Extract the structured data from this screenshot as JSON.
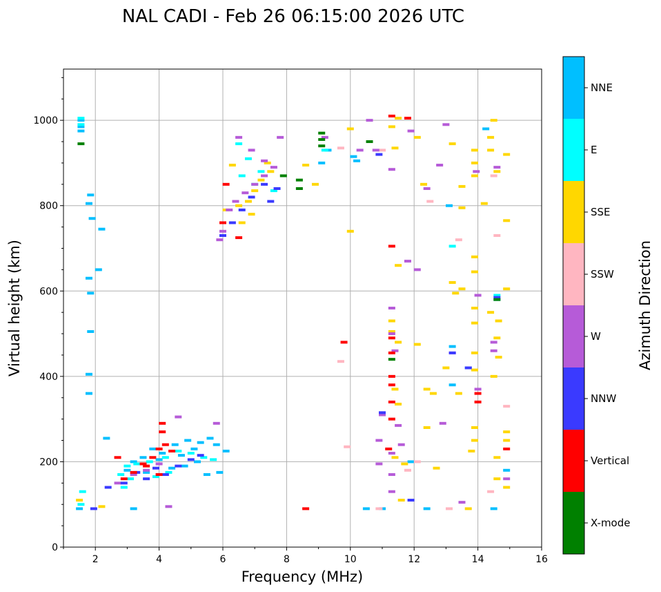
{
  "chart_data": {
    "type": "scatter",
    "title": "NAL CADI - Feb 26 06:15:00 2026 UTC",
    "xlabel": "Frequency (MHz)",
    "ylabel": "Virtual height (km)",
    "xlim": [
      1,
      16
    ],
    "ylim": [
      0,
      1120
    ],
    "xticks": [
      2,
      4,
      6,
      8,
      10,
      12,
      14,
      16
    ],
    "yticks": [
      0,
      200,
      400,
      600,
      800,
      1000
    ],
    "grid": true,
    "colorbar": {
      "title": "Azimuth Direction",
      "categories": [
        "X-mode",
        "Vertical",
        "NNW",
        "W",
        "SSW",
        "SSE",
        "E",
        "NNE"
      ],
      "colors": [
        "#008000",
        "#ff0000",
        "#3a3aff",
        "#b65bd8",
        "#ffb6c1",
        "#ffd700",
        "#00ffff",
        "#00bfff"
      ]
    },
    "series": [
      {
        "name": "NNE",
        "points": [
          [
            1.55,
            1000
          ],
          [
            1.55,
            985
          ],
          [
            1.55,
            975
          ],
          [
            1.85,
            825
          ],
          [
            1.8,
            805
          ],
          [
            1.9,
            770
          ],
          [
            1.8,
            630
          ],
          [
            1.85,
            595
          ],
          [
            1.85,
            505
          ],
          [
            1.8,
            405
          ],
          [
            1.8,
            360
          ],
          [
            2.2,
            745
          ],
          [
            2.1,
            650
          ],
          [
            2.35,
            255
          ],
          [
            3.2,
            90
          ],
          [
            3.0,
            180
          ],
          [
            3.2,
            200
          ],
          [
            3.5,
            210
          ],
          [
            3.8,
            230
          ],
          [
            4.1,
            220
          ],
          [
            4.5,
            240
          ],
          [
            4.9,
            250
          ],
          [
            5.3,
            245
          ],
          [
            5.6,
            255
          ],
          [
            5.8,
            240
          ],
          [
            6.1,
            225
          ],
          [
            5.5,
            170
          ],
          [
            5.9,
            175
          ],
          [
            4.8,
            190
          ],
          [
            5.2,
            200
          ],
          [
            4.4,
            185
          ],
          [
            3.6,
            175
          ],
          [
            3.4,
            195
          ],
          [
            4.0,
            205
          ],
          [
            4.7,
            215
          ],
          [
            5.1,
            230
          ],
          [
            9.3,
            930
          ],
          [
            9.1,
            900
          ],
          [
            10.1,
            915
          ],
          [
            10.2,
            905
          ],
          [
            11.9,
            200
          ],
          [
            12.4,
            90
          ],
          [
            13.2,
            470
          ],
          [
            13.2,
            380
          ],
          [
            13.7,
            420
          ],
          [
            14.25,
            980
          ],
          [
            14.6,
            580
          ],
          [
            14.9,
            180
          ],
          [
            14.5,
            90
          ],
          [
            10.5,
            90
          ],
          [
            11.0,
            90
          ],
          [
            1.5,
            90
          ],
          [
            13.1,
            800
          ]
        ]
      },
      {
        "name": "E",
        "points": [
          [
            1.55,
            1005
          ],
          [
            1.55,
            990
          ],
          [
            1.6,
            130
          ],
          [
            1.55,
            100
          ],
          [
            2.8,
            170
          ],
          [
            3.0,
            190
          ],
          [
            3.3,
            195
          ],
          [
            3.7,
            200
          ],
          [
            4.2,
            210
          ],
          [
            4.6,
            225
          ],
          [
            5.0,
            220
          ],
          [
            5.4,
            210
          ],
          [
            5.7,
            205
          ],
          [
            4.3,
            175
          ],
          [
            3.9,
            165
          ],
          [
            3.1,
            160
          ],
          [
            2.9,
            140
          ],
          [
            6.5,
            945
          ],
          [
            6.8,
            910
          ],
          [
            7.2,
            880
          ],
          [
            7.0,
            850
          ],
          [
            7.6,
            835
          ],
          [
            6.6,
            870
          ],
          [
            9.2,
            930
          ],
          [
            13.2,
            705
          ],
          [
            14.6,
            590
          ]
        ]
      },
      {
        "name": "SSE",
        "points": [
          [
            2.2,
            95
          ],
          [
            1.5,
            110
          ],
          [
            6.1,
            790
          ],
          [
            6.5,
            800
          ],
          [
            6.8,
            810
          ],
          [
            7.0,
            835
          ],
          [
            7.2,
            860
          ],
          [
            7.5,
            880
          ],
          [
            6.9,
            780
          ],
          [
            6.6,
            760
          ],
          [
            7.4,
            900
          ],
          [
            6.3,
            895
          ],
          [
            8.6,
            895
          ],
          [
            8.9,
            850
          ],
          [
            10.0,
            980
          ],
          [
            10.0,
            740
          ],
          [
            11.3,
            985
          ],
          [
            11.4,
            935
          ],
          [
            11.5,
            1005
          ],
          [
            11.5,
            660
          ],
          [
            11.3,
            530
          ],
          [
            11.3,
            505
          ],
          [
            11.4,
            370
          ],
          [
            11.5,
            335
          ],
          [
            11.4,
            210
          ],
          [
            11.6,
            110
          ],
          [
            11.7,
            195
          ],
          [
            12.1,
            475
          ],
          [
            12.1,
            960
          ],
          [
            12.3,
            850
          ],
          [
            12.4,
            370
          ],
          [
            12.6,
            360
          ],
          [
            12.4,
            280
          ],
          [
            12.7,
            185
          ],
          [
            13.2,
            945
          ],
          [
            13.2,
            620
          ],
          [
            13.3,
            595
          ],
          [
            13.5,
            845
          ],
          [
            13.5,
            795
          ],
          [
            13.5,
            605
          ],
          [
            13.4,
            360
          ],
          [
            13.0,
            420
          ],
          [
            13.7,
            90
          ],
          [
            13.8,
            225
          ],
          [
            13.9,
            930
          ],
          [
            13.9,
            900
          ],
          [
            13.9,
            870
          ],
          [
            13.9,
            680
          ],
          [
            13.9,
            645
          ],
          [
            13.9,
            560
          ],
          [
            13.9,
            525
          ],
          [
            13.9,
            455
          ],
          [
            13.9,
            415
          ],
          [
            13.9,
            280
          ],
          [
            13.9,
            250
          ],
          [
            14.2,
            805
          ],
          [
            14.4,
            960
          ],
          [
            14.4,
            930
          ],
          [
            14.5,
            1000
          ],
          [
            14.4,
            550
          ],
          [
            14.6,
            880
          ],
          [
            14.65,
            530
          ],
          [
            14.6,
            490
          ],
          [
            14.65,
            445
          ],
          [
            14.5,
            400
          ],
          [
            14.6,
            210
          ],
          [
            14.6,
            160
          ],
          [
            14.9,
            920
          ],
          [
            14.9,
            765
          ],
          [
            14.9,
            605
          ],
          [
            14.9,
            270
          ],
          [
            14.9,
            250
          ],
          [
            14.9,
            140
          ],
          [
            11.5,
            480
          ]
        ]
      },
      {
        "name": "SSW",
        "points": [
          [
            9.7,
            935
          ],
          [
            9.7,
            435
          ],
          [
            9.9,
            235
          ],
          [
            10.9,
            90
          ],
          [
            11.0,
            930
          ],
          [
            12.1,
            200
          ],
          [
            12.5,
            810
          ],
          [
            13.1,
            90
          ],
          [
            13.4,
            720
          ],
          [
            14.5,
            870
          ],
          [
            14.6,
            730
          ],
          [
            14.9,
            330
          ],
          [
            14.4,
            130
          ],
          [
            11.8,
            180
          ]
        ]
      },
      {
        "name": "W",
        "points": [
          [
            6.2,
            790
          ],
          [
            6.4,
            810
          ],
          [
            6.7,
            830
          ],
          [
            7.0,
            850
          ],
          [
            7.3,
            870
          ],
          [
            7.6,
            890
          ],
          [
            6.0,
            740
          ],
          [
            5.9,
            720
          ],
          [
            6.5,
            960
          ],
          [
            6.9,
            930
          ],
          [
            7.3,
            905
          ],
          [
            7.8,
            960
          ],
          [
            4.6,
            305
          ],
          [
            5.8,
            290
          ],
          [
            2.7,
            150
          ],
          [
            3.2,
            170
          ],
          [
            3.6,
            180
          ],
          [
            4.0,
            195
          ],
          [
            4.3,
            95
          ],
          [
            10.6,
            1000
          ],
          [
            10.8,
            930
          ],
          [
            11.3,
            885
          ],
          [
            11.8,
            670
          ],
          [
            11.9,
            975
          ],
          [
            12.1,
            650
          ],
          [
            12.8,
            895
          ],
          [
            12.4,
            840
          ],
          [
            13.0,
            990
          ],
          [
            11.3,
            560
          ],
          [
            11.3,
            500
          ],
          [
            11.4,
            460
          ],
          [
            11.5,
            285
          ],
          [
            11.6,
            240
          ],
          [
            11.3,
            220
          ],
          [
            11.3,
            170
          ],
          [
            11.0,
            310
          ],
          [
            10.9,
            250
          ],
          [
            10.9,
            195
          ],
          [
            12.9,
            290
          ],
          [
            13.2,
            455
          ],
          [
            14.0,
            590
          ],
          [
            14.0,
            370
          ],
          [
            14.5,
            480
          ],
          [
            14.5,
            460
          ],
          [
            14.6,
            890
          ],
          [
            14.9,
            160
          ],
          [
            13.5,
            105
          ],
          [
            11.3,
            130
          ],
          [
            9.2,
            960
          ],
          [
            10.3,
            930
          ],
          [
            13.95,
            880
          ]
        ]
      },
      {
        "name": "NNW",
        "points": [
          [
            6.0,
            730
          ],
          [
            6.3,
            760
          ],
          [
            6.6,
            790
          ],
          [
            6.9,
            820
          ],
          [
            7.3,
            850
          ],
          [
            7.7,
            840
          ],
          [
            7.5,
            810
          ],
          [
            2.4,
            140
          ],
          [
            2.9,
            150
          ],
          [
            3.3,
            175
          ],
          [
            3.6,
            160
          ],
          [
            3.9,
            185
          ],
          [
            4.2,
            170
          ],
          [
            4.6,
            190
          ],
          [
            5.0,
            205
          ],
          [
            5.3,
            215
          ],
          [
            1.95,
            90
          ],
          [
            11.9,
            110
          ],
          [
            11.0,
            315
          ],
          [
            13.2,
            455
          ],
          [
            13.7,
            420
          ],
          [
            10.9,
            920
          ],
          [
            14.6,
            585
          ]
        ]
      },
      {
        "name": "Vertical",
        "points": [
          [
            6.1,
            850
          ],
          [
            6.0,
            760
          ],
          [
            6.5,
            725
          ],
          [
            4.1,
            290
          ],
          [
            4.1,
            270
          ],
          [
            4.2,
            240
          ],
          [
            4.0,
            230
          ],
          [
            3.8,
            210
          ],
          [
            4.4,
            225
          ],
          [
            3.6,
            190
          ],
          [
            3.2,
            175
          ],
          [
            4.0,
            170
          ],
          [
            2.7,
            210
          ],
          [
            2.9,
            160
          ],
          [
            3.5,
            195
          ],
          [
            8.6,
            90
          ],
          [
            9.8,
            480
          ],
          [
            11.3,
            1010
          ],
          [
            11.3,
            705
          ],
          [
            11.3,
            490
          ],
          [
            11.3,
            455
          ],
          [
            11.3,
            400
          ],
          [
            11.3,
            380
          ],
          [
            11.3,
            340
          ],
          [
            11.3,
            300
          ],
          [
            11.8,
            1005
          ],
          [
            14.0,
            340
          ],
          [
            14.0,
            360
          ],
          [
            14.9,
            230
          ],
          [
            11.2,
            230
          ]
        ]
      },
      {
        "name": "X-mode",
        "points": [
          [
            1.55,
            945
          ],
          [
            7.9,
            870
          ],
          [
            8.4,
            860
          ],
          [
            8.4,
            840
          ],
          [
            9.1,
            970
          ],
          [
            9.1,
            955
          ],
          [
            9.1,
            940
          ],
          [
            10.6,
            950
          ],
          [
            11.3,
            440
          ],
          [
            14.6,
            580
          ]
        ]
      }
    ]
  }
}
